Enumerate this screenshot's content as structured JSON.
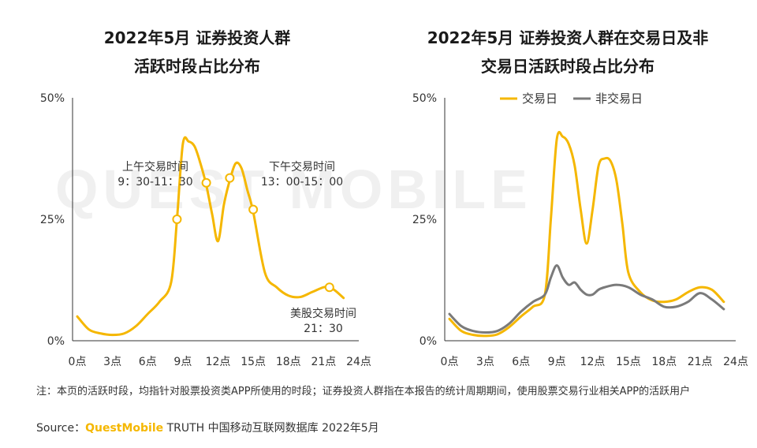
{
  "titles": {
    "left_line1": "2022年5月 证券投资人群",
    "left_line2": "活跃时段占比分布",
    "right_line1": "2022年5月 证券投资人群在交易日及非",
    "right_line2": "交易日活跃时段占比分布"
  },
  "watermark": "QUEST MOBILE",
  "note": "注：本页的活跃时段，均指针对股票投资类APP所使用的时段；证券投资人群指在本报告的统计周期期间，使用股票交易行业相关APP的活跃用户",
  "source": {
    "prefix": "Source：",
    "brand": "QuestMobile",
    "rest": " TRUTH 中国移动互联网数据库 2022年5月"
  },
  "colors": {
    "yellow": "#f5b700",
    "gray": "#7a7a7a",
    "axis": "#333333"
  },
  "chart_data": [
    {
      "type": "line",
      "title": "2022年5月 证券投资人群活跃时段占比分布",
      "x_ticks": [
        "0点",
        "3点",
        "6点",
        "9点",
        "12点",
        "15点",
        "18点",
        "21点",
        "24点"
      ],
      "y_ticks": [
        "0%",
        "25%",
        "50%"
      ],
      "ylim": [
        0,
        50
      ],
      "xlim": [
        0,
        24
      ],
      "series": [
        {
          "x": [
            0,
            1,
            2,
            3,
            4,
            5,
            6,
            7,
            8,
            8.5,
            9,
            9.5,
            10,
            10.5,
            11,
            11.5,
            12,
            12.5,
            13,
            13.5,
            14,
            14.5,
            15,
            16,
            17,
            18,
            19,
            20,
            21,
            21.5,
            22,
            22.7
          ],
          "y": [
            5,
            2.3,
            1.5,
            1.2,
            1.5,
            3,
            5.5,
            8,
            12,
            25,
            40.5,
            41,
            40,
            36.5,
            32,
            26,
            20.5,
            28,
            33,
            36.5,
            35.5,
            31,
            26.5,
            14,
            11,
            9.3,
            9,
            10,
            11,
            11,
            10.3,
            8.8
          ],
          "color": "#f5b700"
        }
      ],
      "annotations": [
        {
          "text_line1": "上午交易时间",
          "text_line2": "9：30-11：30"
        },
        {
          "text_line1": "下午交易时间",
          "text_line2": "13：00-15：00"
        },
        {
          "text_line1": "美股交易时间",
          "text_line2": "21：30"
        }
      ],
      "marker_points": [
        {
          "x": 8.5,
          "y": 25
        },
        {
          "x": 11,
          "y": 32.5
        },
        {
          "x": 13,
          "y": 33.5
        },
        {
          "x": 15,
          "y": 27
        },
        {
          "x": 21.5,
          "y": 11
        }
      ]
    },
    {
      "type": "line",
      "title": "2022年5月 证券投资人群在交易日及非交易日活跃时段占比分布",
      "x_ticks": [
        "0点",
        "3点",
        "6点",
        "9点",
        "12点",
        "15点",
        "18点",
        "21点",
        "24点"
      ],
      "y_ticks": [
        "0%",
        "25%",
        "50%"
      ],
      "ylim": [
        0,
        50
      ],
      "xlim": [
        0,
        24
      ],
      "legend_position": "top",
      "series": [
        {
          "name": "交易日",
          "color": "#f5b700",
          "x": [
            0,
            1,
            2,
            3,
            4,
            5,
            6,
            7,
            8,
            8.5,
            9,
            9.5,
            10,
            10.5,
            11,
            11.5,
            12,
            12.5,
            13,
            13.5,
            14,
            14.5,
            15,
            16,
            17,
            18,
            19,
            20,
            21,
            22,
            23
          ],
          "y": [
            4.5,
            2,
            1.2,
            1,
            1.3,
            2.8,
            5,
            7,
            9.5,
            25,
            41.5,
            42,
            40.5,
            36,
            27,
            20,
            27,
            36,
            37.5,
            37,
            33,
            24,
            14,
            10,
            8.3,
            8,
            8.5,
            10,
            11,
            10.5,
            8
          ]
        },
        {
          "name": "非交易日",
          "color": "#7a7a7a",
          "x": [
            0,
            1,
            2,
            3,
            4,
            5,
            6,
            7,
            8,
            8.5,
            9,
            9.5,
            10,
            10.5,
            11,
            11.5,
            12,
            12.5,
            13,
            14,
            15,
            16,
            17,
            18,
            19,
            20,
            21,
            22,
            23
          ],
          "y": [
            5.5,
            3,
            2,
            1.7,
            2,
            3.5,
            6,
            8,
            9.5,
            13,
            15.5,
            13,
            11.5,
            12,
            10.5,
            9.5,
            9.5,
            10.5,
            11,
            11.5,
            11,
            9.5,
            8.5,
            7,
            7,
            8,
            9.8,
            8.5,
            6.5
          ]
        }
      ]
    }
  ]
}
